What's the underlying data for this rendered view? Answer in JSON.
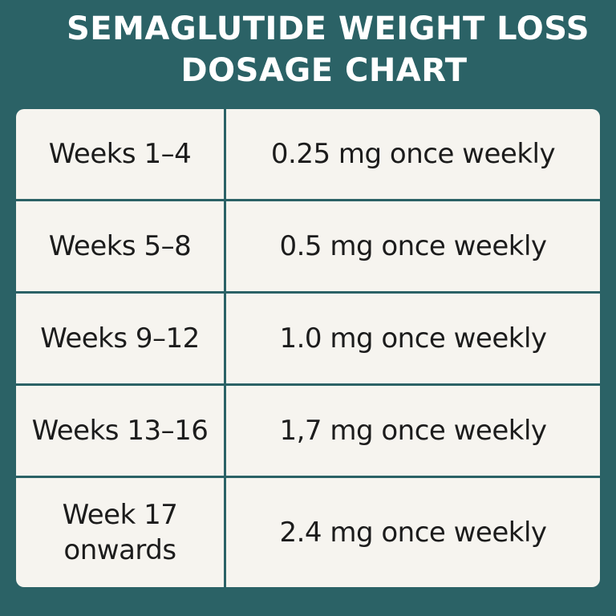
{
  "title": {
    "line1": "SEMAGLUTIDE WEIGHT LOSS",
    "line2": "DOSAGE CHART"
  },
  "schedule": [
    {
      "period": "Weeks 1–4",
      "dose": "0.25 mg once weekly"
    },
    {
      "period": "Weeks 5–8",
      "dose": "0.5 mg once weekly"
    },
    {
      "period": "Weeks 9–12",
      "dose": "1.0 mg once weekly"
    },
    {
      "period": "Weeks 13–16",
      "dose": "1,7 mg once weekly"
    },
    {
      "period_line1": "Week 17",
      "period_line2": "onwards",
      "dose": "2.4 mg once weekly"
    }
  ],
  "colors": {
    "background": "#2b6266",
    "card": "#f6f4ef",
    "title_text": "#ffffff",
    "cell_text": "#1c1c1c"
  }
}
